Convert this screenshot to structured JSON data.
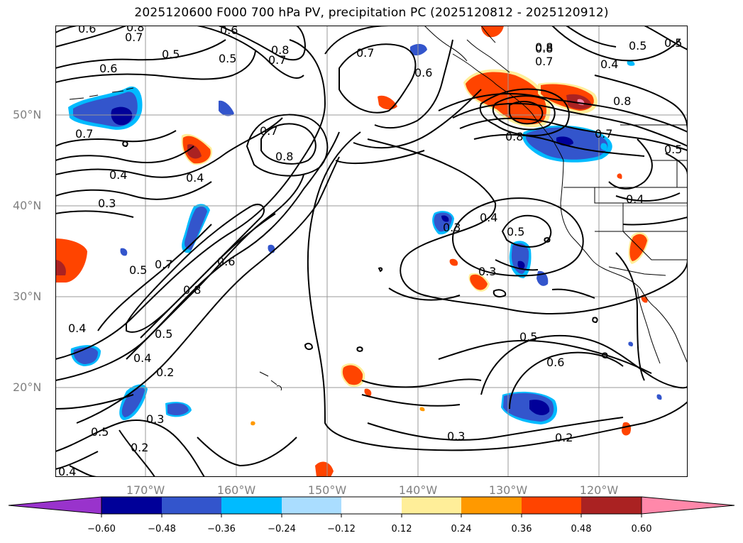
{
  "title": "2025120600 F000 700 hPa PV, precipitation PC (2025120812 - 2025120912)",
  "lat_labels": [
    "50°N",
    "40°N",
    "30°N",
    "20°N"
  ],
  "lon_labels": [
    "170°W",
    "160°W",
    "150°W",
    "140°W",
    "130°W",
    "120°W"
  ],
  "colorbar": {
    "ticks": [
      "−0.60",
      "−0.48",
      "−0.36",
      "−0.24",
      "−0.12",
      "0.12",
      "0.24",
      "0.36",
      "0.48",
      "0.60"
    ],
    "colors": [
      "#9933cc",
      "#000099",
      "#3355cc",
      "#00bbff",
      "#aaddff",
      "#ffffff",
      "#ffee99",
      "#ff9900",
      "#ff4400",
      "#aa2222",
      "#ff88aa"
    ]
  },
  "contour_labels": [
    "0.6",
    "0.7",
    "0.5",
    "0.8",
    "0.6",
    "0.7",
    "0.7",
    "0.6",
    "0.8",
    "0.7",
    "0.5",
    "0.6",
    "0.8",
    "0.7",
    "0.4",
    "0.3",
    "0.7",
    "0.8",
    "0.4",
    "0.4",
    "0.5",
    "0.7",
    "0.6",
    "0.8",
    "0.5",
    "0.5",
    "0.4",
    "0.4",
    "0.2",
    "0.3",
    "0.5",
    "0.2",
    "0.4",
    "0.3",
    "0.4",
    "0.5",
    "0.3",
    "0.5",
    "0.6",
    "0.3",
    "0.2",
    "0.8",
    "0.8",
    "0.8",
    "0.7",
    "0.5",
    "0.4",
    "0.5"
  ],
  "map_colors": {
    "contour": "#000000",
    "grid": "#999999",
    "coast": "#000000"
  }
}
